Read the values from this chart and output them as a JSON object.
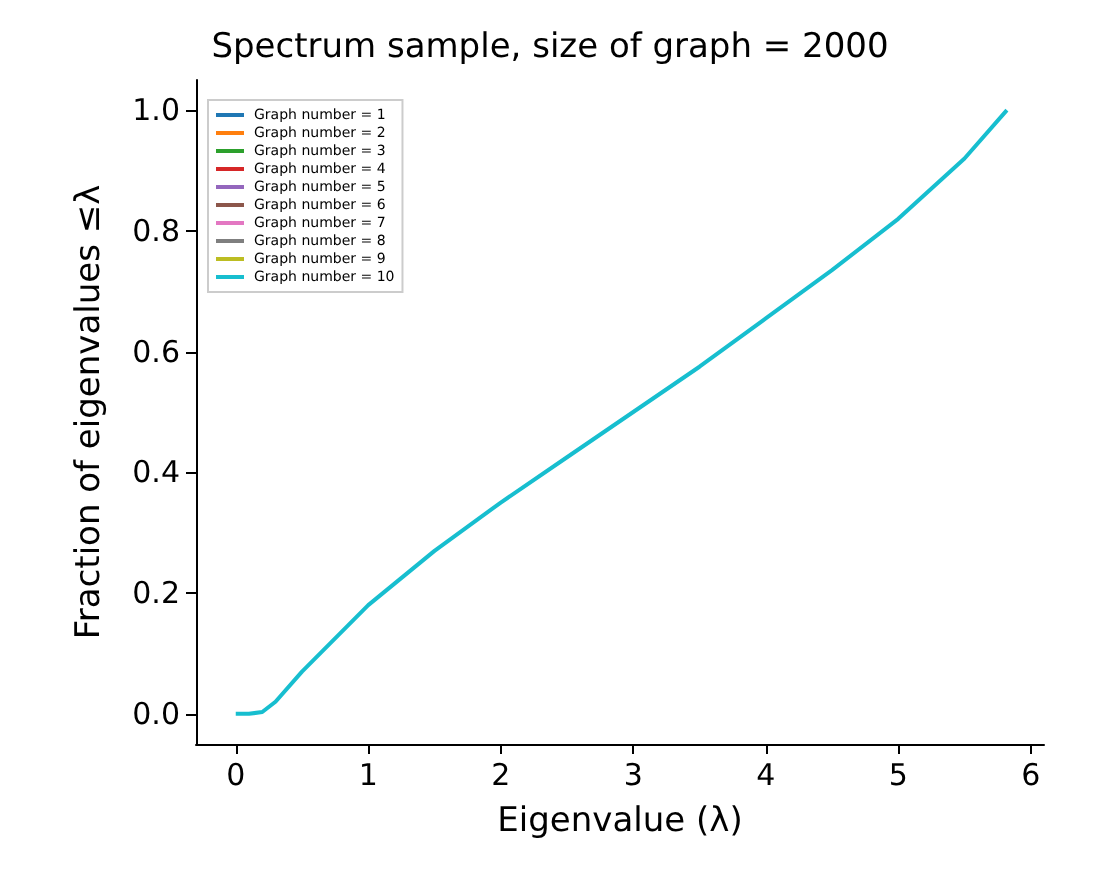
{
  "chart_data": {
    "type": "line",
    "title": "Spectrum sample, size of graph = 2000",
    "xlabel": "Eigenvalue (λ)",
    "ylabel": "Fraction of eigenvalues ≤λ",
    "x": [
      0,
      0.1,
      0.2,
      0.3,
      0.5,
      0.75,
      1,
      1.5,
      2,
      2.5,
      3,
      3.5,
      4,
      4.5,
      5,
      5.5,
      5.82
    ],
    "series": [
      {
        "name": "Graph number = 1",
        "color": "#1f77b4",
        "values": [
          null,
          null,
          null,
          null,
          null,
          null,
          null,
          null,
          null,
          null,
          null,
          null,
          null,
          null,
          null,
          null,
          null
        ]
      },
      {
        "name": "Graph number = 2",
        "color": "#ff7f0e",
        "values": [
          null,
          null,
          null,
          null,
          null,
          null,
          null,
          null,
          null,
          null,
          null,
          null,
          null,
          null,
          null,
          null,
          null
        ]
      },
      {
        "name": "Graph number = 3",
        "color": "#2ca02c",
        "values": [
          null,
          null,
          null,
          null,
          null,
          null,
          null,
          null,
          null,
          null,
          null,
          null,
          null,
          null,
          null,
          null,
          null
        ]
      },
      {
        "name": "Graph number = 4",
        "color": "#d62728",
        "values": [
          null,
          null,
          null,
          null,
          null,
          null,
          null,
          null,
          null,
          null,
          null,
          null,
          null,
          null,
          null,
          null,
          null
        ]
      },
      {
        "name": "Graph number = 5",
        "color": "#9467bd",
        "values": [
          null,
          null,
          null,
          null,
          null,
          null,
          null,
          null,
          null,
          null,
          null,
          null,
          null,
          null,
          null,
          null,
          null
        ]
      },
      {
        "name": "Graph number = 6",
        "color": "#8c564b",
        "values": [
          null,
          null,
          null,
          null,
          null,
          null,
          null,
          null,
          null,
          null,
          null,
          null,
          null,
          null,
          null,
          null,
          null
        ]
      },
      {
        "name": "Graph number = 7",
        "color": "#e377c2",
        "values": [
          null,
          null,
          null,
          null,
          null,
          null,
          null,
          null,
          null,
          null,
          null,
          null,
          null,
          null,
          null,
          null,
          null
        ]
      },
      {
        "name": "Graph number = 8",
        "color": "#7f7f7f",
        "values": [
          null,
          null,
          null,
          null,
          null,
          null,
          null,
          null,
          null,
          null,
          null,
          null,
          null,
          null,
          null,
          null,
          null
        ]
      },
      {
        "name": "Graph number = 9",
        "color": "#bcbd22",
        "values": [
          null,
          null,
          null,
          null,
          null,
          null,
          null,
          null,
          null,
          null,
          null,
          null,
          null,
          null,
          null,
          null,
          null
        ]
      },
      {
        "name": "Graph number = 10",
        "color": "#17becf",
        "values": [
          0,
          0,
          0.003,
          0.02,
          0.07,
          0.125,
          0.18,
          0.27,
          0.35,
          0.425,
          0.5,
          0.575,
          0.655,
          0.735,
          0.82,
          0.92,
          1.0
        ]
      }
    ],
    "xlim": [
      -0.3,
      6.1
    ],
    "xticks": [
      0,
      1,
      2,
      3,
      4,
      5,
      6
    ],
    "ylim": [
      -0.05,
      1.05
    ],
    "yticks": [
      {
        "value": 0,
        "label": "0.0"
      },
      {
        "value": 0.2,
        "label": "0.2"
      },
      {
        "value": 0.4,
        "label": "0.4"
      },
      {
        "value": 0.6,
        "label": "0.6"
      },
      {
        "value": 0.8,
        "label": "0.8"
      },
      {
        "value": 1.0,
        "label": "1.0"
      }
    ],
    "legend": "top left",
    "grid": false,
    "marker": "none",
    "line_style": "solid"
  }
}
